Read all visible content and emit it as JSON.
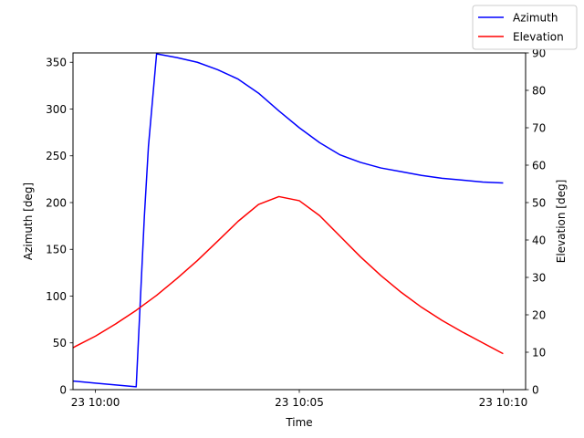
{
  "chart_data": {
    "type": "line",
    "xlabel": "Time",
    "ylabel_left": "Azimuth [deg]",
    "ylabel_right": "Elevation [deg]",
    "xlim_min": [
      -0.55,
      10.55
    ],
    "ylim_left": [
      0,
      360
    ],
    "ylim_right": [
      0,
      90
    ],
    "x_ticks": [
      {
        "value": 0,
        "label": "23 10:00"
      },
      {
        "value": 5,
        "label": "23 10:05"
      },
      {
        "value": 10,
        "label": "23 10:10"
      }
    ],
    "y_ticks_left": [
      0,
      50,
      100,
      150,
      200,
      250,
      300,
      350
    ],
    "y_ticks_right": [
      0,
      10,
      20,
      30,
      40,
      50,
      60,
      70,
      80,
      90
    ],
    "grid": false,
    "legend_position": "top-right",
    "series": [
      {
        "name": "Azimuth",
        "axis": "left",
        "color": "#0000ff",
        "x": [
          -0.9,
          -0.5,
          0.0,
          0.5,
          1.0,
          1.2,
          1.3,
          1.5,
          2.0,
          2.5,
          3.0,
          3.5,
          4.0,
          4.5,
          5.0,
          5.5,
          6.0,
          6.5,
          7.0,
          7.5,
          8.0,
          8.5,
          9.0,
          9.5,
          10.0
        ],
        "values": [
          10,
          9,
          7,
          5,
          3,
          185,
          260,
          359,
          355,
          350,
          342,
          332,
          317,
          298,
          280,
          264,
          251,
          243,
          237,
          233,
          229,
          226,
          224,
          222,
          221
        ]
      },
      {
        "name": "Elevation",
        "axis": "right",
        "color": "#ff0000",
        "x": [
          -0.9,
          -0.5,
          0.0,
          0.5,
          1.0,
          1.5,
          2.0,
          2.5,
          3.0,
          3.5,
          4.0,
          4.5,
          5.0,
          5.5,
          6.0,
          6.5,
          7.0,
          7.5,
          8.0,
          8.5,
          9.0,
          9.5,
          10.0
        ],
        "values": [
          9,
          11.5,
          14.3,
          17.6,
          21.2,
          25.2,
          29.7,
          34.5,
          39.7,
          45,
          49.5,
          51.6,
          50.5,
          46.5,
          41,
          35.5,
          30.5,
          26,
          22,
          18.5,
          15.4,
          12.5,
          9.6
        ]
      }
    ]
  }
}
